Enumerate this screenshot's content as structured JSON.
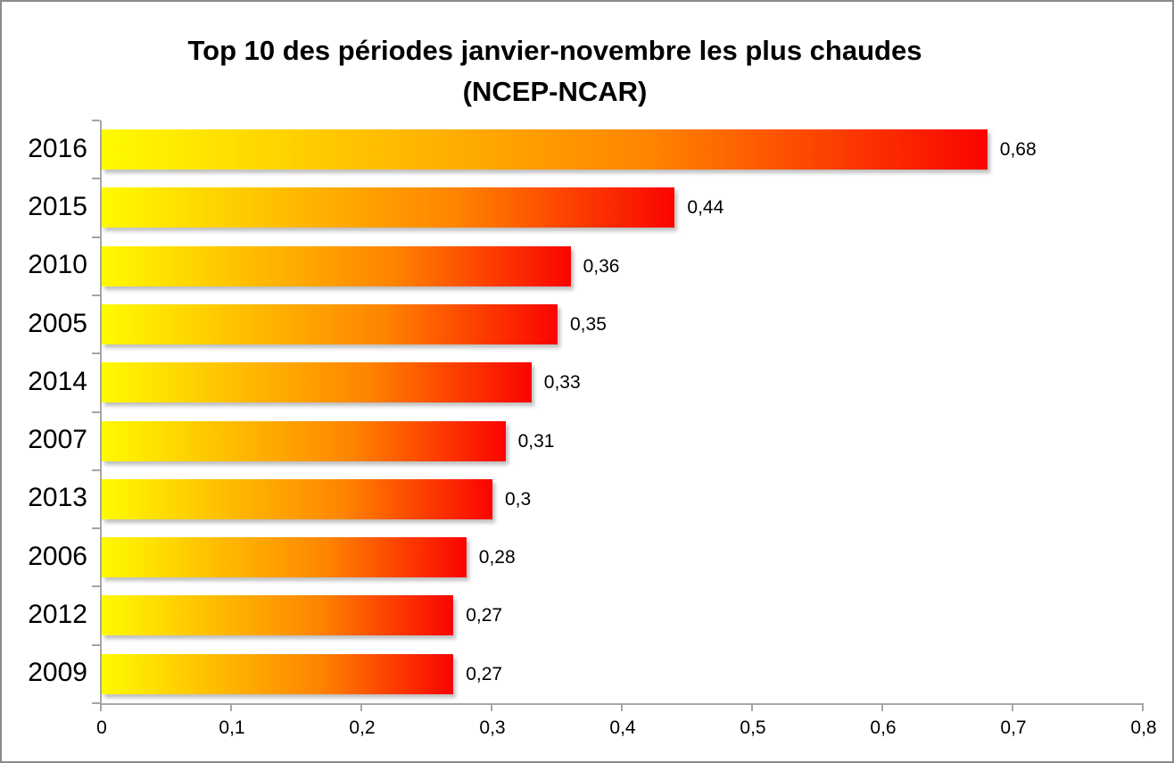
{
  "title": {
    "line1": "Top 10 des périodes janvier-novembre les plus chaudes",
    "line2": "(NCEP-NCAR)"
  },
  "chart_data": {
    "type": "bar",
    "orientation": "horizontal",
    "title": "Top 10 des périodes janvier-novembre les plus chaudes (NCEP-NCAR)",
    "categories": [
      "2016",
      "2015",
      "2010",
      "2005",
      "2014",
      "2007",
      "2013",
      "2006",
      "2012",
      "2009"
    ],
    "values": [
      0.68,
      0.44,
      0.36,
      0.35,
      0.33,
      0.31,
      0.3,
      0.28,
      0.27,
      0.27
    ],
    "value_labels": [
      "0,68",
      "0,44",
      "0,36",
      "0,35",
      "0,33",
      "0,31",
      "0,3",
      "0,28",
      "0,27",
      "0,27"
    ],
    "x_ticks": [
      "0",
      "0,1",
      "0,2",
      "0,3",
      "0,4",
      "0,5",
      "0,6",
      "0,7",
      "0,8"
    ],
    "xlim": [
      0,
      0.8
    ],
    "xlabel": "",
    "ylabel": "",
    "grid": false,
    "legend": false,
    "bar_gradient": [
      "#FFFB00",
      "#FF8400",
      "#FA0400"
    ],
    "axis_color": "#A6A6A6",
    "text_color": "#000000",
    "background_color": "#FFFFFF"
  }
}
